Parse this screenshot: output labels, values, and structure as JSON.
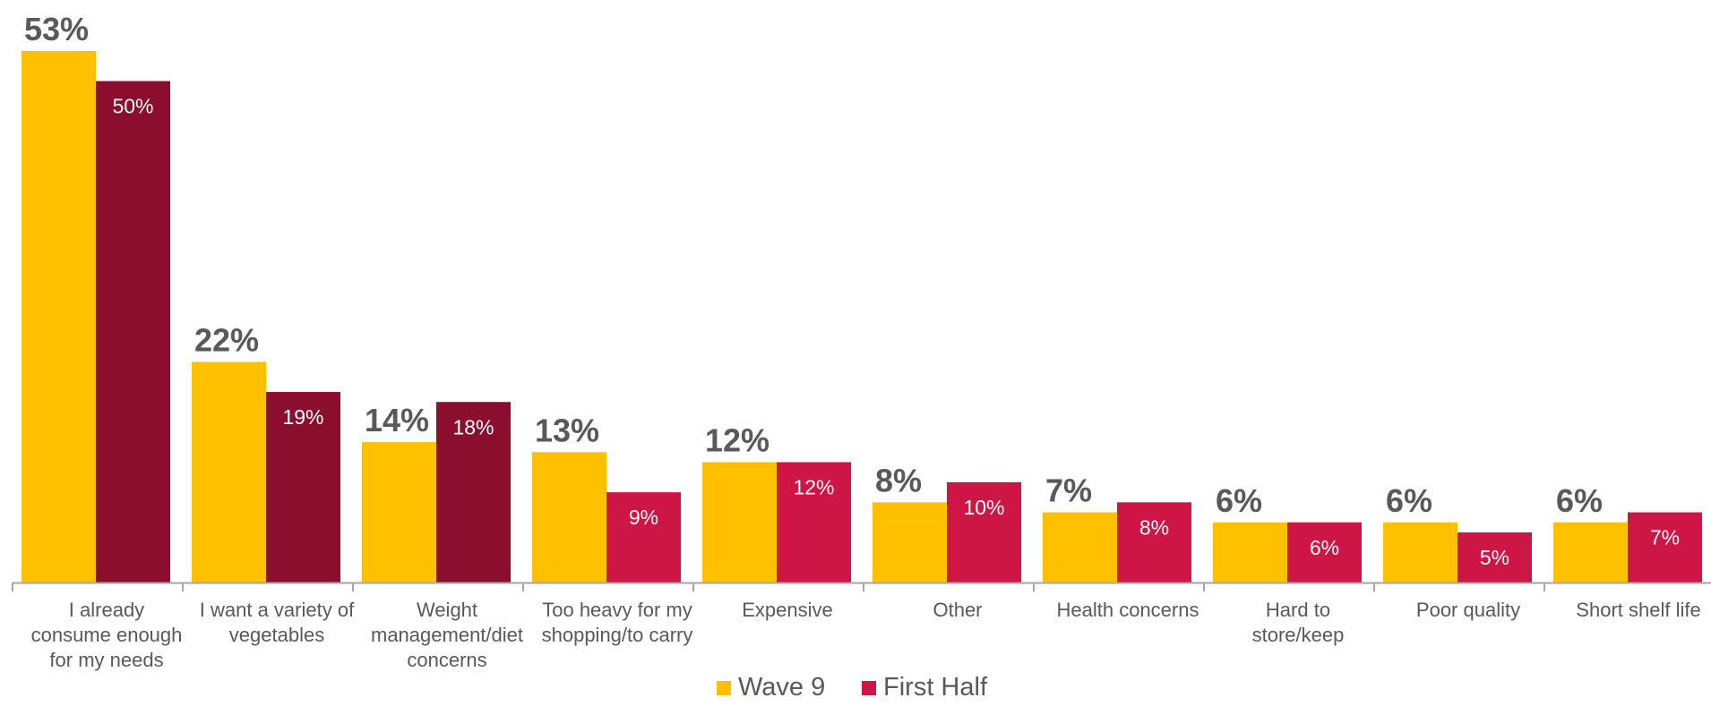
{
  "chart_data": {
    "type": "bar",
    "categories": [
      [
        "I already",
        "consume enough",
        "for my needs"
      ],
      [
        "I want a variety of",
        "vegetables"
      ],
      [
        "Weight",
        "management/diet",
        "concerns"
      ],
      [
        "Too heavy for my",
        "shopping/to carry"
      ],
      [
        "Expensive"
      ],
      [
        "Other"
      ],
      [
        "Health concerns"
      ],
      [
        "Hard to",
        "store/keep"
      ],
      [
        "Poor quality"
      ],
      [
        "Short shelf life"
      ]
    ],
    "series": [
      {
        "name": "Wave 9",
        "values": [
          53,
          22,
          14,
          13,
          12,
          8,
          7,
          6,
          6,
          6
        ],
        "labels": [
          "53%",
          "22%",
          "14%",
          "13%",
          "12%",
          "8%",
          "7%",
          "6%",
          "6%",
          "6%"
        ]
      },
      {
        "name": "First Half",
        "values": [
          50,
          19,
          18,
          9,
          12,
          10,
          8,
          6,
          5,
          7
        ],
        "labels": [
          "50%",
          "19%",
          "18%",
          "9%",
          "12%",
          "10%",
          "8%",
          "6%",
          "5%",
          "7%"
        ]
      }
    ],
    "colors": {
      "wave9": "#FFC000",
      "first_half_dark": "#8B0E2E",
      "first_half": "#CE1646",
      "legend_first_half": "#CE1646"
    },
    "dark_first_half_categories": [
      0,
      1,
      2
    ],
    "ylim": [
      0,
      55
    ],
    "legend_position": "bottom",
    "title": "",
    "xlabel": "",
    "ylabel": ""
  }
}
